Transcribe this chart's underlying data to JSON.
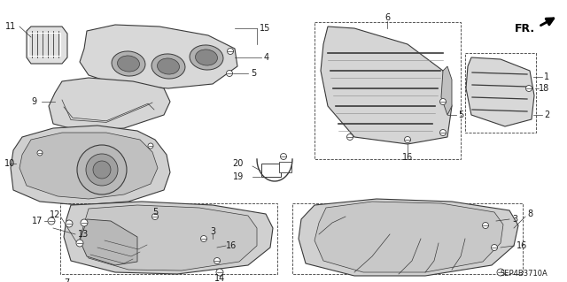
{
  "bg_color": "#ffffff",
  "diagram_code": "SEP4B3710A",
  "line_color": "#3a3a3a",
  "text_color": "#1a1a1a",
  "font_size": 6.5,
  "label_font_size": 7
}
